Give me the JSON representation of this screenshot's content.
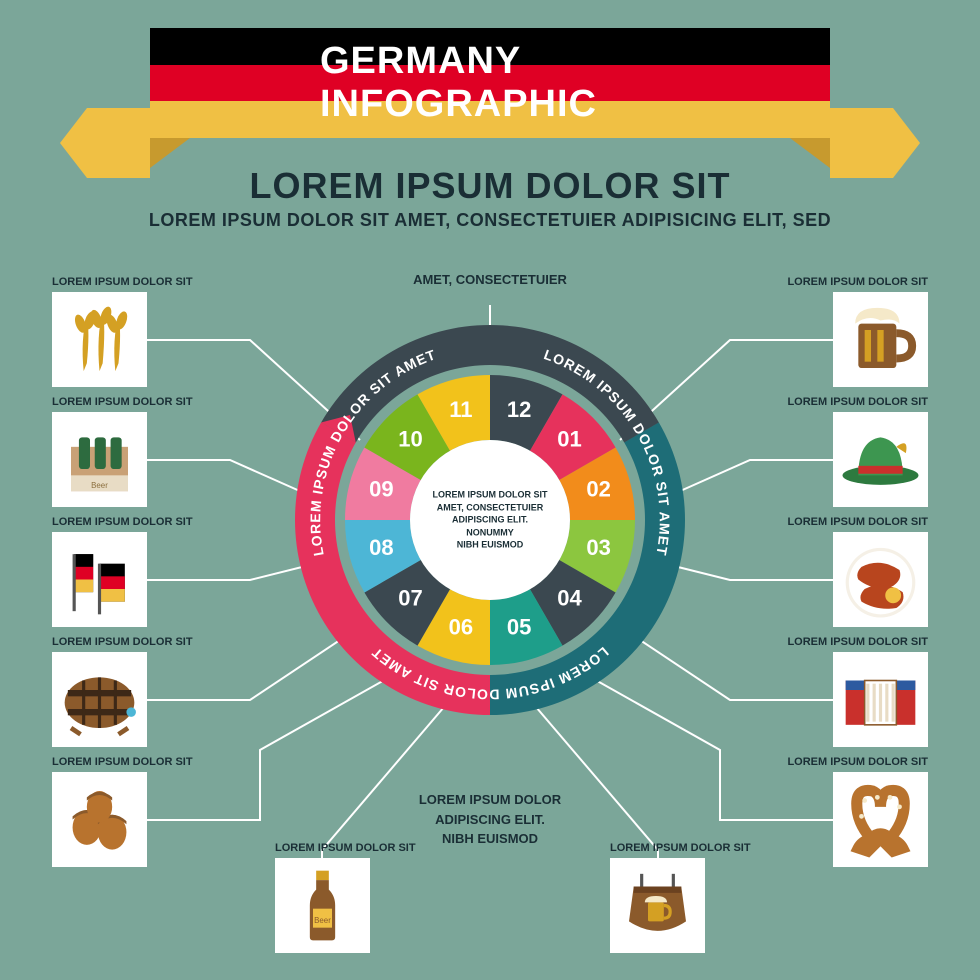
{
  "background_color": "#7ba699",
  "banner": {
    "title": "GERMANY INFOGRAPHIC",
    "ribbon_tail_color": "#f0c044",
    "ribbon_fold_color": "#c79a2e",
    "stripes": [
      "#000000",
      "#df0024",
      "#f0c044"
    ],
    "title_color": "#ffffff"
  },
  "subtitle": "LOREM IPSUM DOLOR SIT",
  "desc": "LOREM IPSUM DOLOR SIT AMET, CONSECTETUIER  ADIPISICING ELIT, SED",
  "top_caption": "AMET, CONSECTETUIER",
  "bottom_caption_1": "LOREM IPSUM DOLOR",
  "bottom_caption_2": "ADIPISCING ELIT.",
  "bottom_caption_3": "NIBH EUISMOD",
  "center_text_1": "LOREM IPSUM DOLOR SIT",
  "center_text_2": "AMET, CONSECTETUIER",
  "center_text_3": "ADIPISCING ELIT.",
  "center_text_4": "NONUMMY",
  "center_text_5": "NIBH EUISMOD",
  "wheel": {
    "type": "pie",
    "center_bg": "#ffffff",
    "arcs": [
      {
        "label": "LOREM IPSUM DOLOR SIT AMET",
        "color": "#3b4850",
        "start": -60,
        "end": 60
      },
      {
        "label": "LOREM IPSUM DOLOR SIT AMET",
        "color": "#1e6d77",
        "start": 60,
        "end": 180
      },
      {
        "label": "LOREM IPSUM DOLOR SIT AMET",
        "color": "#e6325c",
        "start": 180,
        "end": 300
      }
    ],
    "segments": [
      {
        "num": "12",
        "color": "#3b4850"
      },
      {
        "num": "01",
        "color": "#e6325c"
      },
      {
        "num": "02",
        "color": "#f28c1b"
      },
      {
        "num": "03",
        "color": "#8cc63f"
      },
      {
        "num": "04",
        "color": "#3b4850"
      },
      {
        "num": "05",
        "color": "#1e9e8a"
      },
      {
        "num": "06",
        "color": "#f2c21b"
      },
      {
        "num": "07",
        "color": "#3b4850"
      },
      {
        "num": "08",
        "color": "#4db6d6"
      },
      {
        "num": "09",
        "color": "#f07ba0"
      },
      {
        "num": "10",
        "color": "#7ab51d"
      },
      {
        "num": "11",
        "color": "#f2c21b"
      }
    ]
  },
  "icons": {
    "left": [
      {
        "name": "wheat-icon",
        "label": "LOREM IPSUM DOLOR SIT"
      },
      {
        "name": "beer-pack-icon",
        "label": "LOREM IPSUM DOLOR SIT"
      },
      {
        "name": "flag-icon",
        "label": "LOREM IPSUM DOLOR SIT"
      },
      {
        "name": "barrel-icon",
        "label": "LOREM IPSUM DOLOR SIT"
      },
      {
        "name": "acorns-icon",
        "label": "LOREM IPSUM DOLOR SIT"
      }
    ],
    "right": [
      {
        "name": "beer-mug-icon",
        "label": "LOREM IPSUM DOLOR SIT"
      },
      {
        "name": "hat-icon",
        "label": "LOREM IPSUM DOLOR SIT"
      },
      {
        "name": "sausages-icon",
        "label": "LOREM IPSUM DOLOR SIT"
      },
      {
        "name": "accordion-icon",
        "label": "LOREM IPSUM DOLOR SIT"
      },
      {
        "name": "pretzel-icon",
        "label": "LOREM IPSUM DOLOR SIT"
      }
    ],
    "bottom": [
      {
        "name": "beer-bottle-icon",
        "label": "LOREM IPSUM DOLOR SIT"
      },
      {
        "name": "tavern-sign-icon",
        "label": "LOREM IPSUM DOLOR SIT"
      }
    ],
    "box_bg": "#ffffff"
  },
  "text_color": "#1a2e35"
}
